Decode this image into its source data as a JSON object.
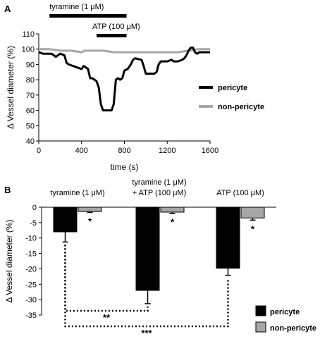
{
  "chart_data": [
    {
      "panel": "A",
      "type": "line",
      "xlabel": "time (s)",
      "ylabel": "Δ Vessel diameter (%)",
      "xlim": [
        0,
        1600
      ],
      "ylim": [
        40,
        110
      ],
      "xticks": [
        "0",
        "400",
        "800",
        "1200",
        "1600"
      ],
      "yticks": [
        "40",
        "50",
        "60",
        "70",
        "80",
        "90",
        "100",
        "110"
      ],
      "stimuli": [
        {
          "label": "tyramine (1 μM)",
          "start": 100,
          "end": 820
        },
        {
          "label": "ATP (100 μM)",
          "start": 540,
          "end": 820
        }
      ],
      "legend": {
        "position": "right",
        "entries": [
          "pericyte",
          "non-pericyte"
        ]
      },
      "series": [
        {
          "name": "pericyte",
          "color": "#000000",
          "x": [
            0,
            40,
            80,
            120,
            160,
            200,
            240,
            260,
            280,
            320,
            360,
            400,
            420,
            440,
            460,
            480,
            500,
            520,
            540,
            560,
            580,
            600,
            640,
            680,
            700,
            720,
            740,
            760,
            780,
            800,
            830,
            860,
            880,
            900,
            960,
            980,
            1000,
            1020,
            1040,
            1080,
            1100,
            1120,
            1140,
            1200,
            1240,
            1260,
            1300,
            1340,
            1360,
            1380,
            1400,
            1420,
            1440,
            1460,
            1480,
            1500,
            1600
          ],
          "y": [
            98,
            97,
            97,
            97,
            95,
            97,
            96,
            91,
            90,
            89,
            88,
            87,
            89,
            88,
            87,
            81,
            81,
            80,
            79,
            75,
            64,
            60,
            60,
            60,
            64,
            80,
            81,
            80,
            81,
            86,
            87,
            90,
            93,
            94,
            93,
            89,
            84,
            84,
            84,
            84,
            85,
            90,
            92,
            92,
            93,
            92,
            92,
            93,
            94,
            96,
            99,
            101,
            101,
            98,
            97,
            98,
            98
          ]
        },
        {
          "name": "non-pericyte",
          "color": "#a6a6a6",
          "x": [
            0,
            100,
            200,
            300,
            400,
            430,
            470,
            500,
            600,
            700,
            800,
            900,
            1000,
            1100,
            1200,
            1300,
            1400,
            1500,
            1600
          ],
          "y": [
            100,
            100,
            99,
            99,
            98,
            99,
            99,
            99,
            99,
            98,
            98,
            98,
            98,
            98,
            98,
            98,
            99,
            100,
            100
          ]
        }
      ]
    },
    {
      "panel": "B",
      "type": "bar",
      "ylabel": "Δ Vessel diameter (%)",
      "ylim": [
        -35,
        0
      ],
      "yticks": [
        "0",
        "-5",
        "-10",
        "-15",
        "-20",
        "-25",
        "-30",
        "-35"
      ],
      "categories": [
        "tyramine (1 μM)",
        "tyramine (1 μM)\n+ ATP (100 μM)",
        "ATP (100 μM)"
      ],
      "category_lines": [
        [
          "tyramine (1 μM)"
        ],
        [
          "tyramine (1 μM)",
          "+ ATP (100 μM)"
        ],
        [
          "ATP (100 μM)"
        ]
      ],
      "legend": {
        "position": "bottom-right",
        "entries": [
          "pericyte",
          "non-pericyte"
        ]
      },
      "series": [
        {
          "name": "pericyte",
          "color": "#000000",
          "values": [
            -8.0,
            -27.0,
            -19.8
          ],
          "errors": [
            3.3,
            4.3,
            2.3
          ]
        },
        {
          "name": "non-pericyte",
          "color": "#a6a6a6",
          "values": [
            -1.4,
            -1.6,
            -3.5
          ],
          "errors": [
            0.3,
            0.4,
            0.7
          ]
        }
      ],
      "annotations": [
        "*",
        "*",
        "*"
      ],
      "comparisons": [
        {
          "from": 0,
          "to": 1,
          "label": "**"
        },
        {
          "from": 0,
          "to": 2,
          "label": "***"
        }
      ]
    }
  ]
}
